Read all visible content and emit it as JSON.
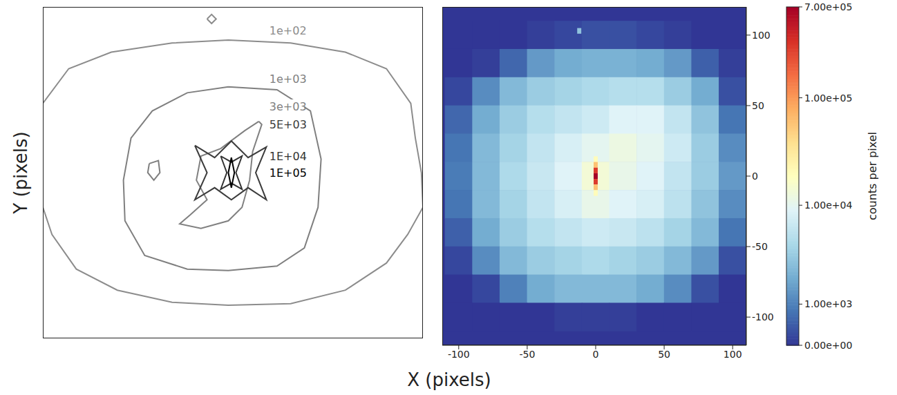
{
  "chart_data": [
    {
      "type": "contour",
      "ylabel": "Y (pixels)",
      "xlim": [
        -125,
        125
      ],
      "ylim": [
        -110,
        110
      ],
      "tick_labels": false,
      "contours": [
        {
          "label": "1e+02",
          "level": 100,
          "color": "#8c8c8c",
          "label_at": [
            24,
            94
          ],
          "rings": [
            {
              "x": [
                -125,
                -108,
                -80,
                -40,
                -3,
                38,
                74,
                101,
                117,
                120,
                124,
                125,
                115,
                101,
                74,
                38,
                -3,
                -40,
                -76,
                -103,
                -119,
                -125,
                -125
              ],
              "y": [
                46,
                69,
                80,
                86,
                88,
                86,
                80,
                69,
                46,
                23,
                0,
                -23,
                -41,
                -60,
                -78,
                -87,
                -88,
                -86,
                -78,
                -64,
                -41,
                -23,
                23
              ]
            },
            {
              "x": [
                -17,
                -14,
                -11,
                -14
              ],
              "y": [
                102,
                105,
                102,
                99
              ]
            }
          ]
        },
        {
          "label": "1e+03",
          "level": 1000,
          "color": "#7f7f7f",
          "label_at": [
            24,
            62
          ],
          "rings": [
            {
              "x": [
                -3,
                29,
                51,
                58,
                56,
                47,
                29,
                -3,
                -30,
                -58,
                -71,
                -72,
                -67,
                -53,
                -30
              ],
              "y": [
                57,
                55,
                41,
                9,
                -23,
                -50,
                -62,
                -65,
                -64,
                -55,
                -32,
                -5,
                23,
                41,
                53
              ]
            },
            {
              "x": [
                -55,
                -49,
                -48,
                -52,
                -56
              ],
              "y": [
                6,
                8,
                0,
                -5,
                0
              ]
            }
          ]
        },
        {
          "label": "3e+03",
          "level": 3000,
          "color": "#808080",
          "label_at": [
            24,
            44
          ],
          "rings": [
            {
              "x": [
                17,
                8,
                -8,
                -21,
                -24,
                -17,
                -28,
                -35,
                -21,
                -3,
                6,
                11,
                13,
                19
              ],
              "y": [
                34,
                28,
                16,
                11,
                -5,
                -18,
                -28,
                -34,
                -37,
                -32,
                -23,
                -5,
                14,
                32
              ]
            }
          ]
        },
        {
          "label": "5E+03",
          "level": 5000,
          "color": "#3c3c3c",
          "label_at": [
            24,
            32
          ],
          "rings": [
            {
              "x": [
                -25,
                -12,
                -1,
                10,
                22,
                15,
                22,
                10,
                -1,
                -12,
                -25,
                -17
              ],
              "y": [
                18,
                10,
                21,
                10,
                17,
                0,
                -18,
                -10,
                -18,
                -10,
                -18,
                0
              ]
            }
          ]
        },
        {
          "label": "1E+04",
          "level": 10000,
          "color": "#333333",
          "label_at": [
            24,
            11
          ],
          "rings": [
            {
              "x": [
                -8,
                -1,
                6,
                2,
                6,
                -1,
                -8,
                -4
              ],
              "y": [
                11,
                7,
                11,
                0,
                -11,
                -7,
                -11,
                0
              ]
            }
          ]
        },
        {
          "label": "1E+05",
          "level": 100000,
          "color": "#000000",
          "label_at": [
            24,
            0
          ],
          "rings": [
            {
              "x": [
                -1,
                1,
                -1,
                -3
              ],
              "y": [
                10,
                0,
                -10,
                0
              ]
            }
          ]
        }
      ]
    },
    {
      "type": "heatmap",
      "xlabel": "X (pixels)",
      "xlim": [
        -112,
        110
      ],
      "ylim": [
        -120,
        120
      ],
      "xticks": [
        -100,
        -50,
        0,
        50,
        100
      ],
      "yticks": [
        -100,
        -50,
        0,
        50,
        100
      ],
      "heatmap": {
        "x": [
          -100,
          -80,
          -60,
          -40,
          -20,
          0,
          20,
          40,
          60,
          80,
          100
        ],
        "y": [
          100,
          80,
          60,
          40,
          20,
          0,
          -20,
          -40,
          -60,
          -80,
          -100
        ],
        "z": [
          [
            0,
            0,
            0,
            100,
            200,
            300,
            300,
            200,
            100,
            0,
            0
          ],
          [
            0,
            100,
            600,
            1500,
            2000,
            2200,
            2200,
            2000,
            1500,
            500,
            100
          ],
          [
            200,
            1200,
            2500,
            3500,
            4000,
            4500,
            5000,
            5000,
            3500,
            2000,
            300
          ],
          [
            600,
            2000,
            3500,
            5000,
            6000,
            7000,
            9000,
            9000,
            6000,
            3000,
            800
          ],
          [
            800,
            2500,
            4000,
            6000,
            8000,
            10000,
            12000,
            10000,
            7000,
            3500,
            1200
          ],
          [
            900,
            2500,
            4500,
            6500,
            9000,
            14000,
            11000,
            9000,
            6000,
            3500,
            1500
          ],
          [
            800,
            2500,
            4000,
            6000,
            8000,
            11000,
            9000,
            8000,
            5500,
            3000,
            1200
          ],
          [
            500,
            2000,
            3500,
            5000,
            6000,
            7000,
            6500,
            5500,
            4000,
            2500,
            800
          ],
          [
            200,
            1200,
            2500,
            3500,
            4000,
            4500,
            4000,
            3500,
            2500,
            1500,
            300
          ],
          [
            0,
            200,
            1000,
            2000,
            2500,
            2500,
            2500,
            2000,
            1200,
            300,
            0
          ],
          [
            0,
            0,
            0,
            0,
            100,
            100,
            100,
            0,
            0,
            0,
            0
          ]
        ]
      },
      "sources": {
        "x": [
          0,
          0,
          0,
          0,
          0,
          0,
          0,
          -12
        ],
        "y": [
          12,
          8,
          4,
          0,
          -4,
          -8,
          -12,
          103
        ],
        "values": [
          20000,
          60000,
          300000,
          700000,
          300000,
          60000,
          20000,
          3000
        ]
      },
      "colorbar": {
        "label": "counts per pixel",
        "range": [
          0,
          700000
        ],
        "ticks": [
          {
            "value": 0,
            "label": "0.00e+00"
          },
          {
            "value": 1000,
            "label": "1.00e+03"
          },
          {
            "value": 10000,
            "label": "1.00e+04"
          },
          {
            "value": 100000,
            "label": "1.00e+05"
          },
          {
            "value": 700000,
            "label": "7.00e+05"
          }
        ]
      }
    }
  ]
}
